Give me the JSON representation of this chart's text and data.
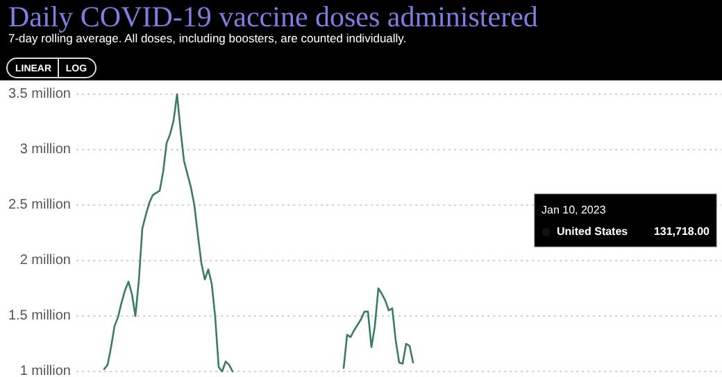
{
  "chart_data": {
    "type": "line",
    "title": "Daily COVID-19 vaccine doses administered",
    "subtitle": "7-day rolling average. All doses, including boosters, are counted individually.",
    "annotations": [
      "LINEAR",
      "LOG",
      "Jan 10, 2023",
      "United States",
      "131,718.00"
    ],
    "categories": [
      null,
      null,
      null,
      null,
      null,
      null,
      null,
      null,
      null,
      null,
      null,
      null,
      null,
      null,
      null,
      null,
      null,
      null,
      null,
      null,
      null,
      null,
      null,
      null,
      null,
      null,
      null,
      null,
      null,
      null,
      null,
      null,
      null,
      null,
      null,
      null,
      null,
      null,
      null,
      null,
      null,
      null,
      null,
      null,
      null,
      null,
      null,
      null,
      null,
      null,
      null,
      null,
      null,
      null,
      null,
      null,
      null,
      null,
      null,
      null,
      null,
      null,
      null,
      null,
      null,
      null,
      null,
      null,
      null,
      null,
      null,
      null,
      null,
      null,
      null,
      null,
      null,
      null,
      null,
      null,
      null,
      null,
      null,
      null,
      null,
      null,
      null,
      null,
      null,
      null,
      null,
      null,
      null,
      null,
      null,
      null,
      null,
      null,
      null,
      null,
      null,
      null,
      null,
      null,
      null,
      null,
      null,
      null,
      null,
      null,
      null,
      null,
      null,
      null,
      null,
      null,
      null,
      null,
      null,
      null,
      null,
      null,
      null,
      null,
      null,
      null,
      null,
      null,
      null,
      null,
      null,
      null,
      null,
      null,
      null,
      null,
      null,
      null,
      null,
      null,
      null,
      null,
      null,
      null,
      null,
      null,
      null,
      null,
      null,
      null,
      null,
      null,
      null,
      null,
      null,
      null,
      null,
      null,
      null,
      null,
      null,
      null,
      null,
      null,
      null,
      null,
      null,
      null,
      null,
      null,
      null,
      null,
      null,
      null,
      null,
      null,
      null,
      null,
      null,
      null,
      null,
      null,
      null,
      null,
      null,
      null,
      null
    ],
    "series": [
      {
        "color": "#3a7d5c",
        "values": [
          null,
          null,
          null,
          null,
          null,
          null,
          null,
          null,
          1020000,
          1060000,
          1220000,
          1410000,
          1490000,
          1620000,
          1730000,
          1810000,
          1700000,
          1500000,
          1820000,
          2290000,
          2410000,
          2520000,
          2590000,
          2610000,
          2630000,
          2800000,
          3060000,
          3140000,
          3260000,
          3500000,
          3180000,
          2900000,
          2780000,
          2660000,
          2500000,
          2230000,
          1980000,
          1830000,
          1920000,
          1790000,
          1490000,
          1040000,
          1000000,
          1090000,
          1060000,
          1000000,
          null,
          null,
          null,
          null,
          null,
          null,
          null,
          null,
          null,
          null,
          null,
          null,
          null,
          null,
          null,
          null,
          null,
          null,
          null,
          null,
          null,
          null,
          null,
          null,
          null,
          null,
          null,
          null,
          null,
          null,
          null,
          1030000,
          1330000,
          1310000,
          1370000,
          1420000,
          1470000,
          1540000,
          1540000,
          1220000,
          1410000,
          1750000,
          1700000,
          1640000,
          1550000,
          1570000,
          1280000,
          1080000,
          1070000,
          1250000,
          1230000,
          1080000,
          null,
          null,
          null,
          null,
          null,
          null,
          null,
          null,
          null,
          null,
          null,
          null,
          null,
          null,
          null,
          null,
          null,
          null,
          null,
          null,
          null,
          null,
          null,
          null,
          null,
          null,
          null,
          null,
          null,
          null,
          null,
          null,
          null,
          null,
          null,
          null,
          null,
          null,
          null,
          null,
          null,
          null,
          null,
          null,
          null,
          null,
          null,
          null,
          null,
          null,
          null,
          null,
          null,
          null,
          null,
          null,
          null,
          null,
          null,
          null,
          null,
          null,
          null,
          null,
          null,
          null,
          null,
          null,
          null,
          null,
          null,
          null,
          null,
          null,
          null,
          null,
          null,
          null,
          null,
          null,
          null,
          null,
          null,
          null,
          null,
          null,
          null,
          null,
          null
        ]
      }
    ],
    "ylim": [
      1000000,
      3500000
    ],
    "yticks": [
      {
        "value": 1000000,
        "label": "1 million"
      },
      {
        "value": 1500000,
        "label": "1.5 million"
      },
      {
        "value": 2000000,
        "label": "2 million"
      },
      {
        "value": 2500000,
        "label": "2.5 million"
      },
      {
        "value": 3000000,
        "label": "3 million"
      },
      {
        "value": 3500000,
        "label": "3.5 million"
      }
    ],
    "tick_labels": "y",
    "grid": "y",
    "line_style": "solid",
    "marker": "none"
  }
}
